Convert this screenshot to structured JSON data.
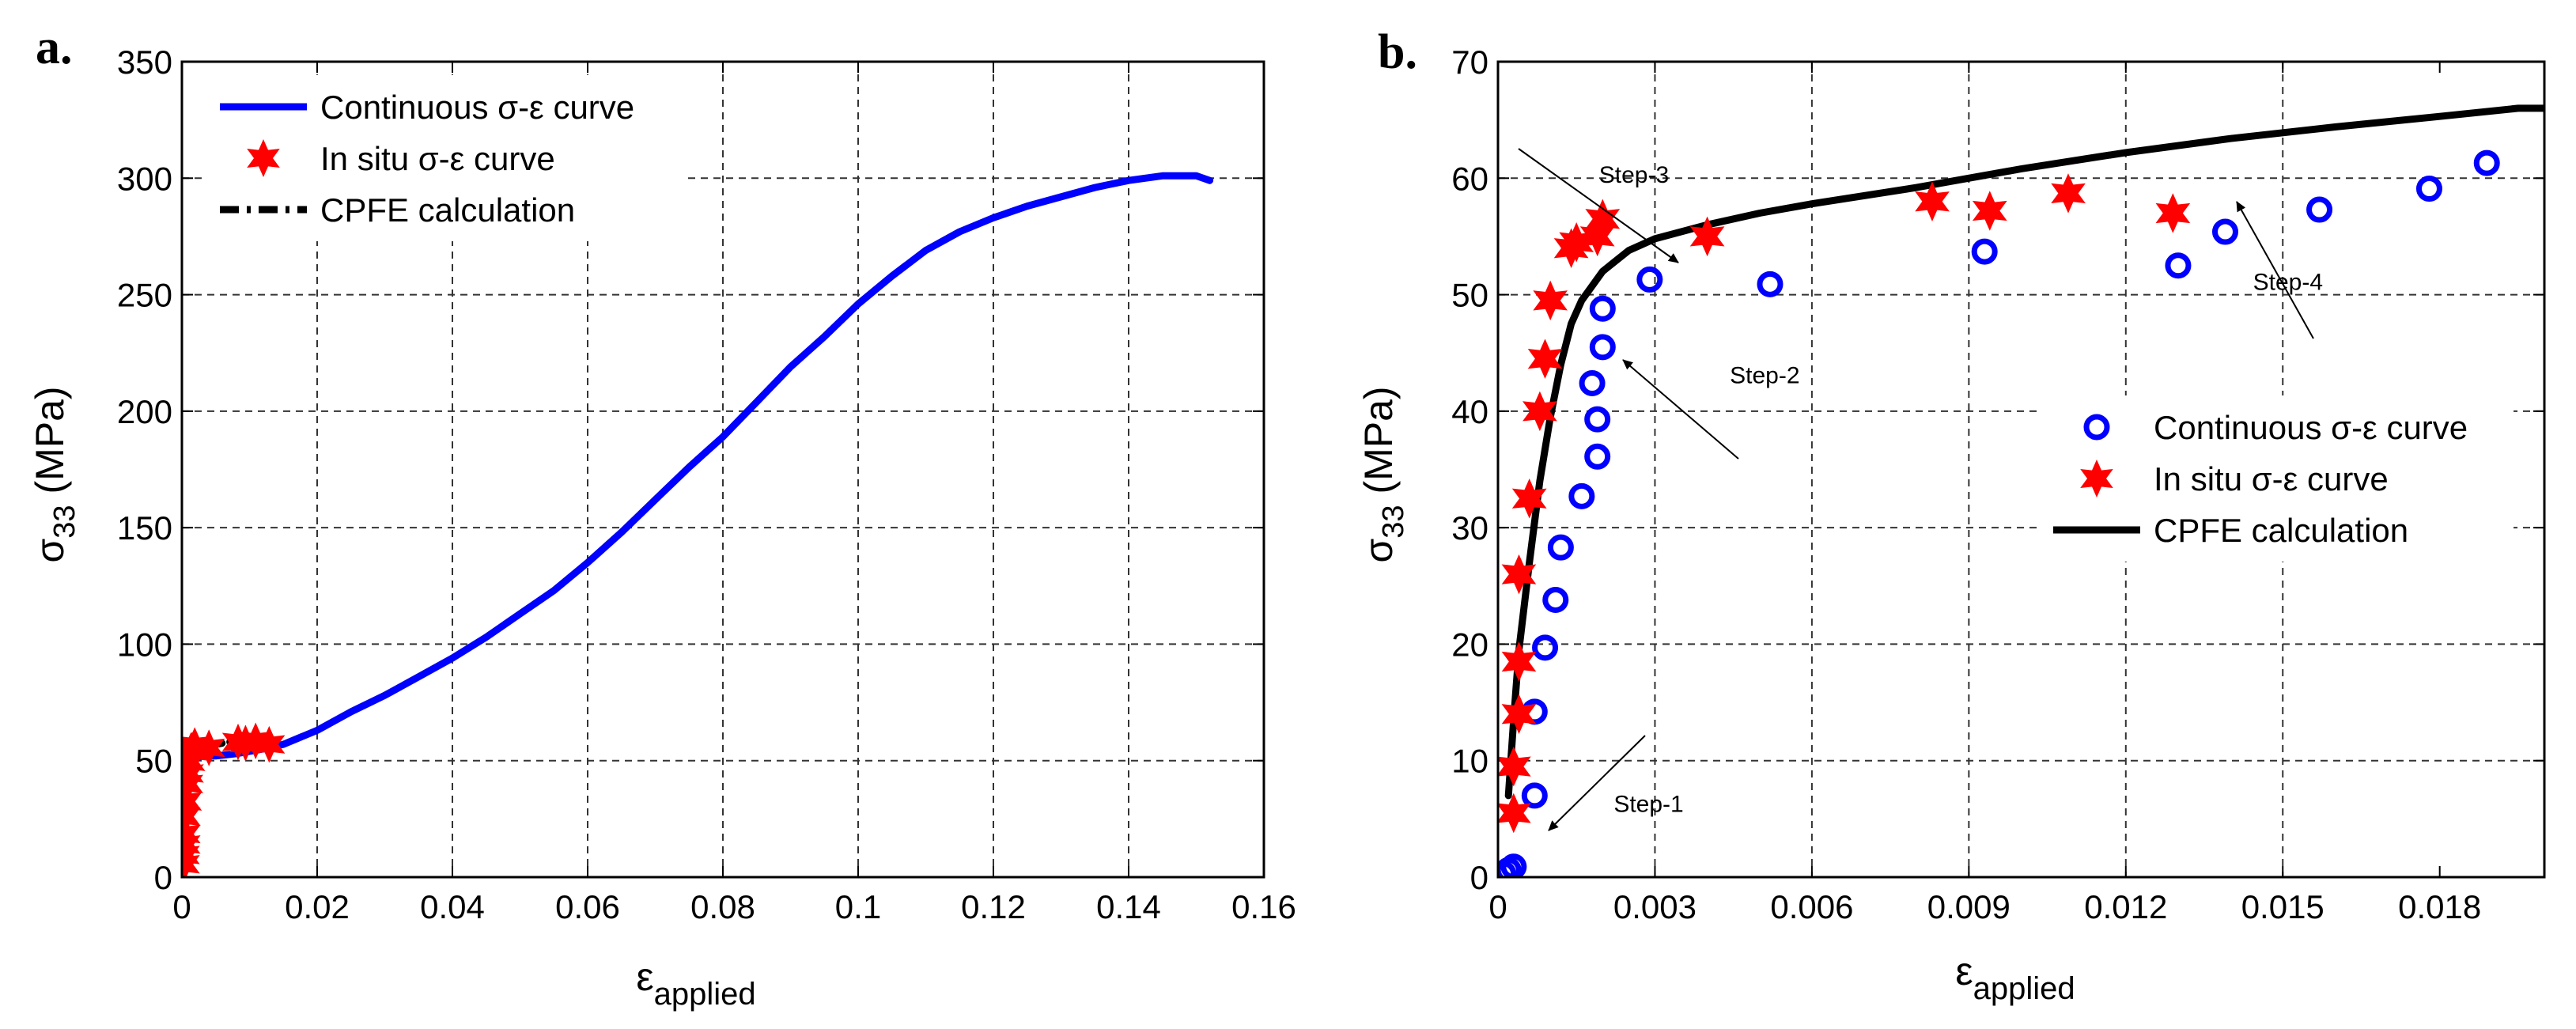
{
  "chart_data": [
    {
      "type": "scatter",
      "panel_label": "a.",
      "xlabel": {
        "main": "ε",
        "sub": "applied"
      },
      "ylabel": {
        "main": "σ",
        "sub": "33",
        "unit": " (MPa)"
      },
      "xlim": [
        0,
        0.16
      ],
      "ylim": [
        0,
        350
      ],
      "xticks": [
        0,
        0.02,
        0.04,
        0.06,
        0.08,
        0.1,
        0.12,
        0.14,
        0.16
      ],
      "xtick_labels": [
        "0",
        "0.02",
        "0.04",
        "0.06",
        "0.08",
        "0.1",
        "0.12",
        "0.14",
        "0.16"
      ],
      "yticks": [
        0,
        50,
        100,
        150,
        200,
        250,
        300,
        350
      ],
      "ytick_labels": [
        "0",
        "50",
        "100",
        "150",
        "200",
        "250",
        "300",
        "350"
      ],
      "grid": true,
      "legend": {
        "placement": "top-left",
        "entries": [
          "Continuous σ-ε curve",
          "In situ σ-ε curve",
          "CPFE calculation"
        ]
      },
      "series": [
        {
          "name": "Continuous σ-ε curve",
          "style": "line",
          "color": "#0000ff",
          "x": [
            0,
            0.0005,
            0.001,
            0.0015,
            0.002,
            0.003,
            0.005,
            0.008,
            0.01,
            0.012,
            0.015,
            0.02,
            0.025,
            0.03,
            0.035,
            0.04,
            0.045,
            0.05,
            0.055,
            0.06,
            0.065,
            0.07,
            0.075,
            0.08,
            0.085,
            0.09,
            0.095,
            0.1,
            0.105,
            0.11,
            0.115,
            0.12,
            0.125,
            0.13,
            0.135,
            0.14,
            0.145,
            0.15,
            0.152
          ],
          "y": [
            0,
            20,
            40,
            48,
            51,
            52,
            52,
            53,
            54,
            55,
            57,
            63,
            71,
            78,
            86,
            94,
            103,
            113,
            123,
            135,
            148,
            162,
            176,
            189,
            204,
            219,
            232,
            246,
            258,
            269,
            277,
            283,
            288,
            292,
            296,
            299,
            301,
            301,
            299
          ]
        },
        {
          "name": "In situ σ-ε curve",
          "style": "star",
          "color": "#ff0000",
          "x": [
            0.0003,
            0.0003,
            0.0004,
            0.0004,
            0.0004,
            0.0006,
            0.0008,
            0.0009,
            0.0011,
            0.0013,
            0.0014,
            0.0018,
            0.0019,
            0.002,
            0.004,
            0.0083,
            0.0094,
            0.0109,
            0.0129
          ],
          "y": [
            5.5,
            9.5,
            14,
            18.5,
            26,
            32.5,
            40,
            44.5,
            49.5,
            54,
            54.5,
            55,
            56.5,
            55,
            55.5,
            58,
            57.5,
            58.5,
            57
          ]
        },
        {
          "name": "CPFE calculation",
          "style": "dashdot",
          "color": "#000000",
          "x": [
            0.0002,
            0.0003,
            0.0005,
            0.0008,
            0.001,
            0.0012,
            0.0015,
            0.002,
            0.0025,
            0.003,
            0.004,
            0.005,
            0.006,
            0.008,
            0.01
          ],
          "y": [
            7,
            14,
            25,
            35,
            41,
            46,
            50,
            53,
            54.5,
            55,
            56,
            57,
            57.5,
            58.5,
            59.5
          ]
        }
      ]
    },
    {
      "type": "scatter",
      "panel_label": "b.",
      "xlabel": {
        "main": "ε",
        "sub": "applied"
      },
      "ylabel": {
        "main": "σ",
        "sub": "33",
        "unit": " (MPa)"
      },
      "xlim": [
        0,
        0.02
      ],
      "ylim": [
        0,
        70
      ],
      "xticks": [
        0,
        0.003,
        0.006,
        0.009,
        0.012,
        0.015,
        0.018
      ],
      "xtick_labels": [
        "0",
        "0.003",
        "0.006",
        "0.009",
        "0.012",
        "0.015",
        "0.018"
      ],
      "yticks": [
        0,
        10,
        20,
        30,
        40,
        50,
        60,
        70
      ],
      "ytick_labels": [
        "0",
        "10",
        "20",
        "30",
        "40",
        "50",
        "60",
        "70"
      ],
      "grid": true,
      "legend": {
        "placement": "center-right",
        "entries": [
          "Continuous σ-ε curve",
          "In situ σ-ε curve",
          "CPFE calculation"
        ]
      },
      "annotations": [
        {
          "text": "Step-1",
          "x": 0.00288,
          "y": 5.6
        },
        {
          "text": "Step-2",
          "x": 0.0051,
          "y": 42.4
        },
        {
          "text": "Step-3",
          "x": 0.0026,
          "y": 59.6
        },
        {
          "text": "Step-4",
          "x": 0.0151,
          "y": 50.4
        }
      ],
      "series": [
        {
          "name": "Continuous σ-ε curve",
          "style": "circle",
          "color": "#0000ff",
          "x": [
            0.0001,
            0.0002,
            0.0003,
            0.0007,
            0.0007,
            0.0009,
            0.0011,
            0.0012,
            0.0016,
            0.0018,
            0.0019,
            0.0019,
            0.002,
            0.002,
            0.0029,
            0.0052,
            0.0093,
            0.013,
            0.0139,
            0.0157,
            0.0178,
            0.0189
          ],
          "y": [
            0.3,
            0.6,
            0.9,
            7,
            14.2,
            19.7,
            23.8,
            28.3,
            32.7,
            42.4,
            36.1,
            39.3,
            45.5,
            48.8,
            51.3,
            50.9,
            53.7,
            52.5,
            55.4,
            57.3,
            59.1,
            61.3
          ]
        },
        {
          "name": "In situ σ-ε curve",
          "style": "star",
          "color": "#ff0000",
          "x": [
            0.0003,
            0.0003,
            0.0004,
            0.0004,
            0.0004,
            0.0006,
            0.0008,
            0.0009,
            0.001,
            0.0014,
            0.0015,
            0.0019,
            0.002,
            0.004,
            0.0083,
            0.0094,
            0.0109,
            0.0129
          ],
          "y": [
            5.5,
            9.5,
            14,
            18.5,
            26,
            32.5,
            40,
            44.5,
            49.5,
            54,
            54.5,
            55,
            56.5,
            55,
            58,
            57.2,
            58.7,
            57
          ]
        },
        {
          "name": "CPFE calculation",
          "style": "line",
          "color": "#000000",
          "x": [
            0.0002,
            0.0003,
            0.0004,
            0.0006,
            0.0008,
            0.001,
            0.0012,
            0.0014,
            0.0016,
            0.002,
            0.0025,
            0.003,
            0.004,
            0.005,
            0.006,
            0.008,
            0.01,
            0.012,
            0.014,
            0.016,
            0.018,
            0.0195,
            0.02
          ],
          "y": [
            7,
            13.5,
            19.5,
            27,
            34,
            39.5,
            44,
            47.5,
            49.5,
            52,
            53.8,
            54.8,
            56,
            57,
            57.8,
            59.2,
            60.8,
            62.2,
            63.4,
            64.4,
            65.3,
            66,
            66
          ]
        }
      ]
    }
  ]
}
